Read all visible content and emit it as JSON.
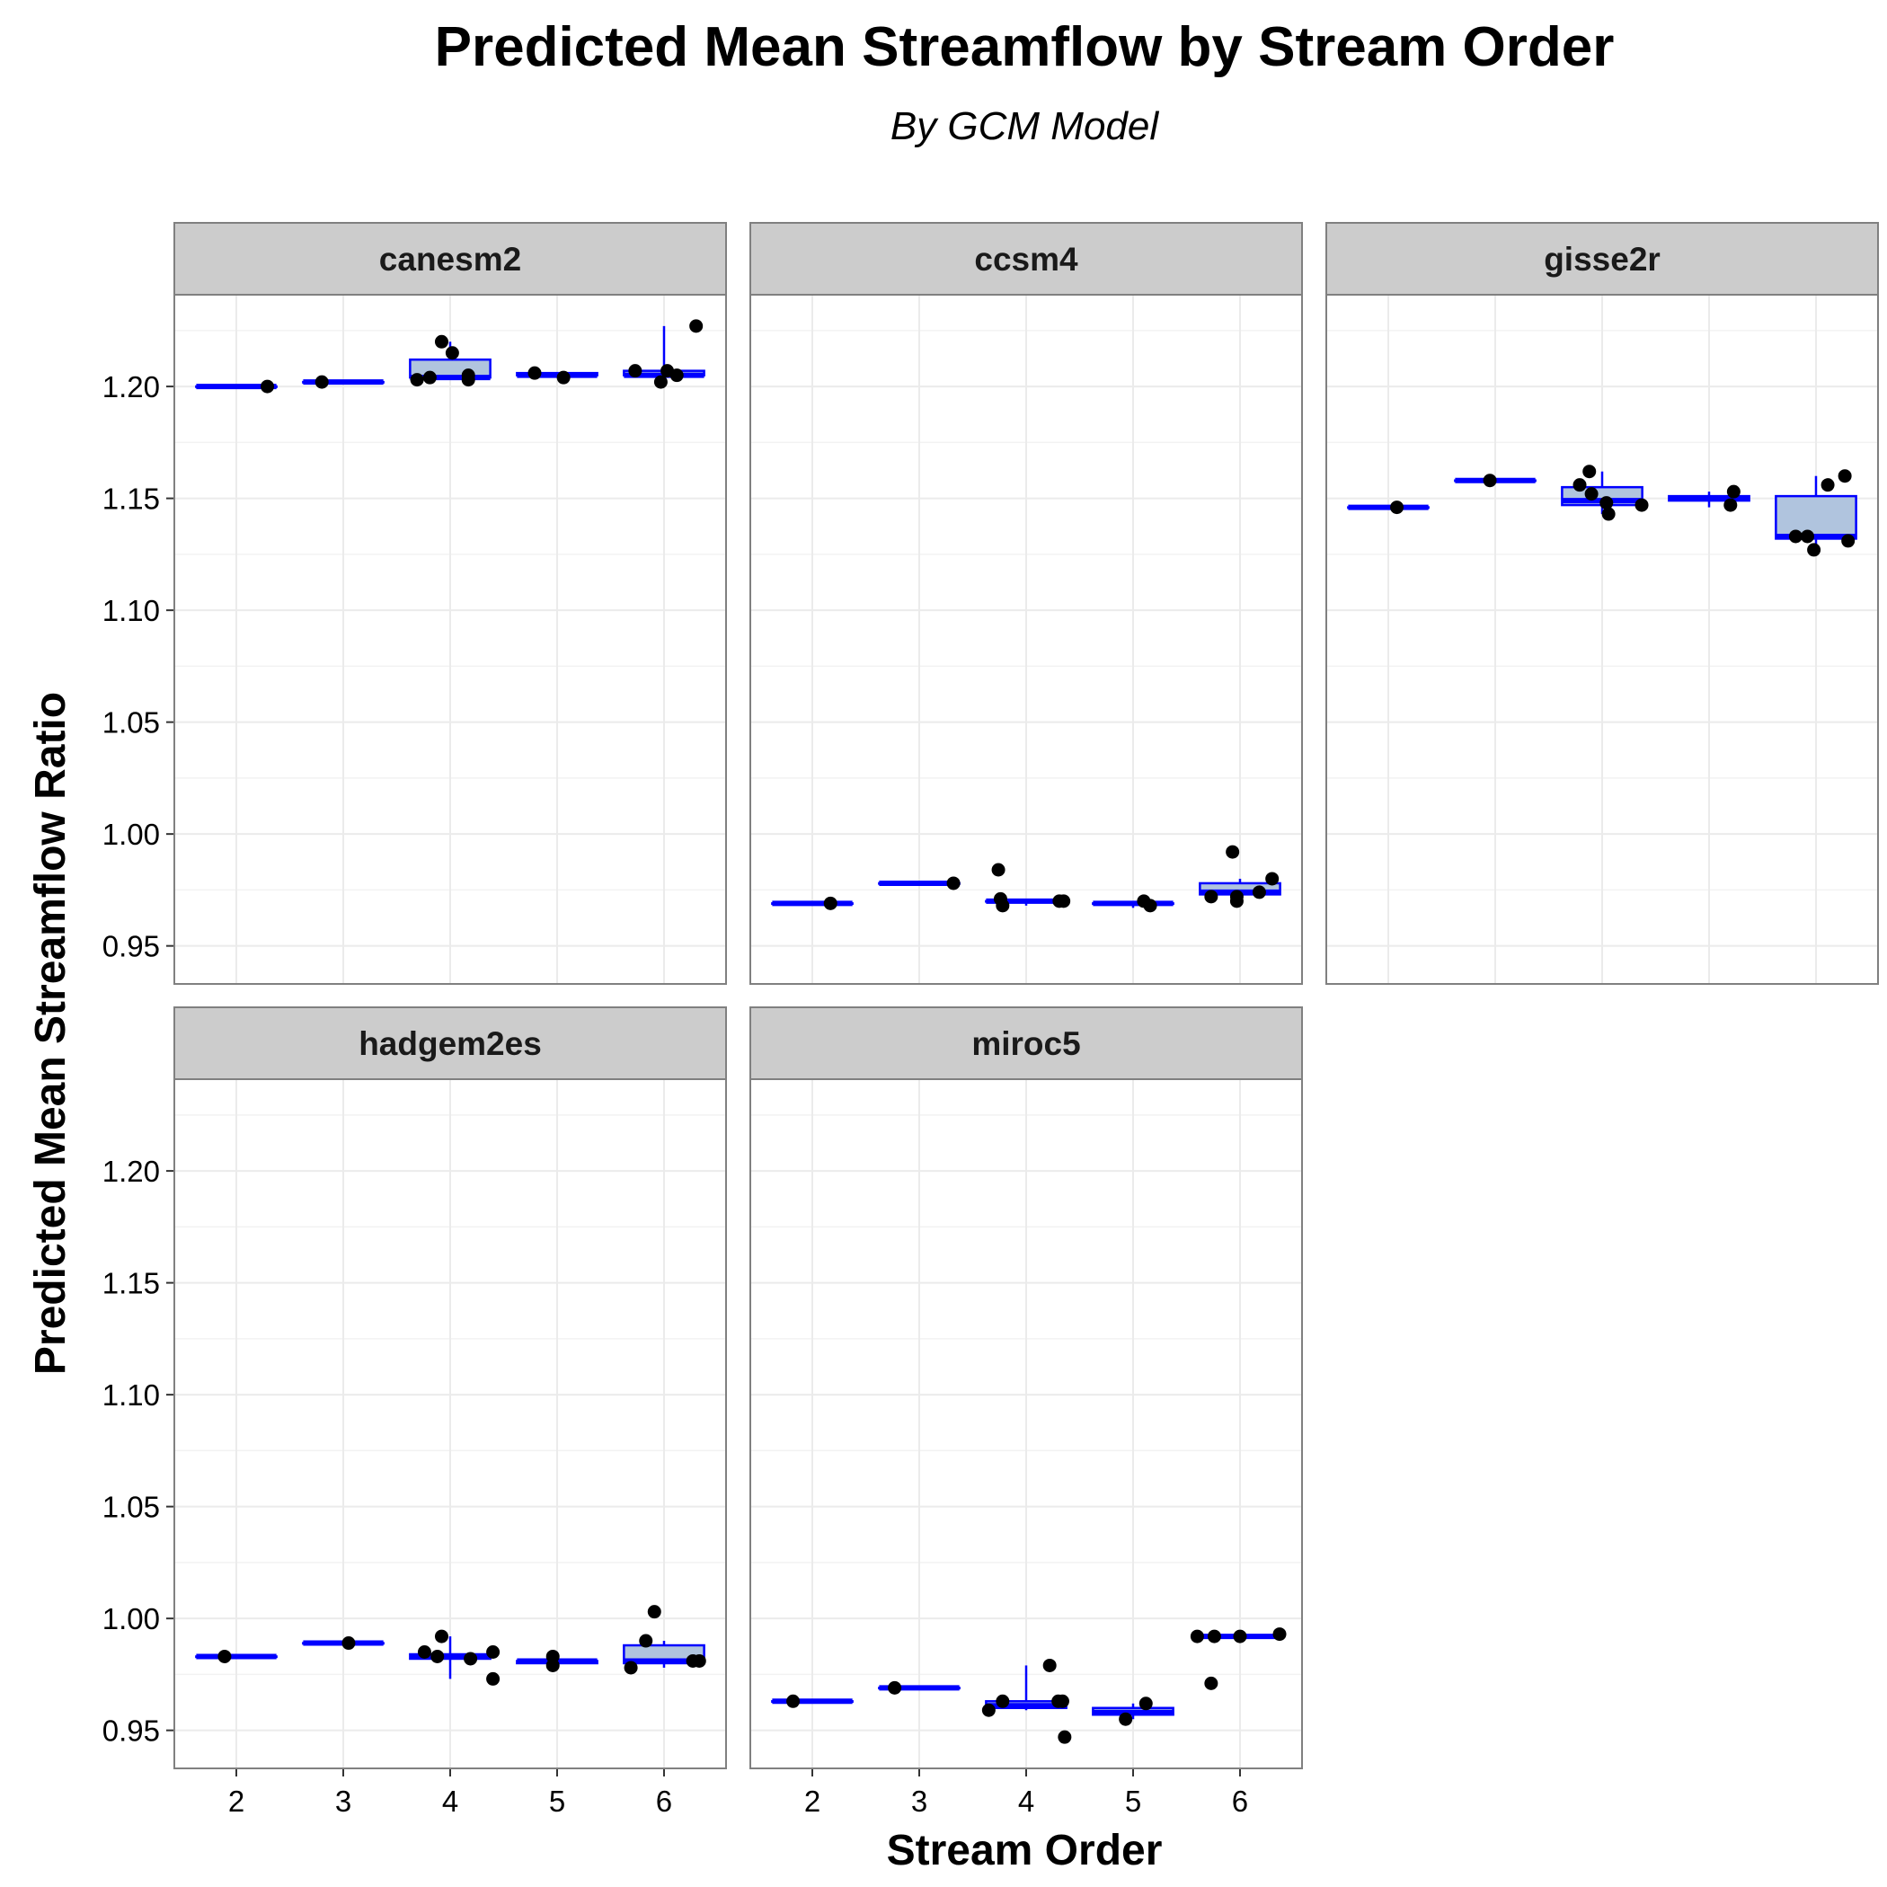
{
  "chart_data": {
    "type": "boxplot",
    "title": "Predicted Mean Streamflow by Stream Order",
    "subtitle": "By GCM Model",
    "xlabel": "Stream Order",
    "ylabel": "Predicted Mean Streamflow Ratio",
    "categories": [
      2,
      3,
      4,
      5,
      6
    ],
    "x_ticks": [
      "2",
      "3",
      "4",
      "5",
      "6"
    ],
    "y_ticks": [
      "0.95",
      "1.00",
      "1.05",
      "1.10",
      "1.15",
      "1.20"
    ],
    "ylim": [
      0.933,
      1.241
    ],
    "grid": true,
    "colors": {
      "box_line": "#0000ff",
      "box_fill": "#b0c4de",
      "points": "#000000",
      "strip_fill": "#cccccc",
      "panel_border": "#808080",
      "grid": "#ebebeb"
    },
    "panels": [
      {
        "name": "canesm2",
        "boxes": [
          {
            "x": 2,
            "q1": 1.2,
            "median": 1.2,
            "q3": 1.2,
            "whisker_low": 1.2,
            "whisker_high": 1.2
          },
          {
            "x": 3,
            "q1": 1.202,
            "median": 1.202,
            "q3": 1.202,
            "whisker_low": 1.202,
            "whisker_high": 1.202
          },
          {
            "x": 4,
            "q1": 1.204,
            "median": 1.204,
            "q3": 1.212,
            "whisker_low": 1.203,
            "whisker_high": 1.22
          },
          {
            "x": 5,
            "q1": 1.205,
            "median": 1.205,
            "q3": 1.206,
            "whisker_low": 1.204,
            "whisker_high": 1.206
          },
          {
            "x": 6,
            "q1": 1.205,
            "median": 1.205,
            "q3": 1.207,
            "whisker_low": 1.202,
            "whisker_high": 1.227
          }
        ],
        "points": [
          [
            2.29,
            1.2
          ],
          [
            2.8,
            1.202
          ],
          [
            3.69,
            1.203
          ],
          [
            3.81,
            1.204
          ],
          [
            3.92,
            1.22
          ],
          [
            4.02,
            1.215
          ],
          [
            4.17,
            1.205
          ],
          [
            4.17,
            1.203
          ],
          [
            4.79,
            1.206
          ],
          [
            5.06,
            1.204
          ],
          [
            5.73,
            1.207
          ],
          [
            5.97,
            1.202
          ],
          [
            6.03,
            1.207
          ],
          [
            6.12,
            1.205
          ],
          [
            6.3,
            1.227
          ]
        ]
      },
      {
        "name": "ccsm4",
        "boxes": [
          {
            "x": 2,
            "q1": 0.969,
            "median": 0.969,
            "q3": 0.969,
            "whisker_low": 0.969,
            "whisker_high": 0.969
          },
          {
            "x": 3,
            "q1": 0.978,
            "median": 0.978,
            "q3": 0.978,
            "whisker_low": 0.978,
            "whisker_high": 0.978
          },
          {
            "x": 4,
            "q1": 0.97,
            "median": 0.97,
            "q3": 0.97,
            "whisker_low": 0.968,
            "whisker_high": 0.97
          },
          {
            "x": 5,
            "q1": 0.969,
            "median": 0.969,
            "q3": 0.969,
            "whisker_low": 0.967,
            "whisker_high": 0.97
          },
          {
            "x": 6,
            "q1": 0.973,
            "median": 0.974,
            "q3": 0.978,
            "whisker_low": 0.97,
            "whisker_high": 0.98
          }
        ],
        "points": [
          [
            2.17,
            0.969
          ],
          [
            3.32,
            0.978
          ],
          [
            3.74,
            0.984
          ],
          [
            3.76,
            0.971
          ],
          [
            3.78,
            0.968
          ],
          [
            4.31,
            0.97
          ],
          [
            4.35,
            0.97
          ],
          [
            5.1,
            0.97
          ],
          [
            5.16,
            0.968
          ],
          [
            5.73,
            0.972
          ],
          [
            5.93,
            0.992
          ],
          [
            5.97,
            0.972
          ],
          [
            5.97,
            0.97
          ],
          [
            6.18,
            0.974
          ],
          [
            6.3,
            0.98
          ]
        ]
      },
      {
        "name": "gisse2r",
        "boxes": [
          {
            "x": 2,
            "q1": 1.146,
            "median": 1.146,
            "q3": 1.146,
            "whisker_low": 1.146,
            "whisker_high": 1.146
          },
          {
            "x": 3,
            "q1": 1.158,
            "median": 1.158,
            "q3": 1.158,
            "whisker_low": 1.158,
            "whisker_high": 1.158
          },
          {
            "x": 4,
            "q1": 1.147,
            "median": 1.149,
            "q3": 1.155,
            "whisker_low": 1.143,
            "whisker_high": 1.162
          },
          {
            "x": 5,
            "q1": 1.149,
            "median": 1.15,
            "q3": 1.151,
            "whisker_low": 1.146,
            "whisker_high": 1.153
          },
          {
            "x": 6,
            "q1": 1.132,
            "median": 1.133,
            "q3": 1.151,
            "whisker_low": 1.127,
            "whisker_high": 1.16
          }
        ],
        "points": [
          [
            2.08,
            1.146
          ],
          [
            2.95,
            1.158
          ],
          [
            3.79,
            1.156
          ],
          [
            3.88,
            1.162
          ],
          [
            3.9,
            1.152
          ],
          [
            4.04,
            1.148
          ],
          [
            4.06,
            1.143
          ],
          [
            4.37,
            1.147
          ],
          [
            5.2,
            1.147
          ],
          [
            5.23,
            1.153
          ],
          [
            5.81,
            1.133
          ],
          [
            5.92,
            1.133
          ],
          [
            5.98,
            1.127
          ],
          [
            6.11,
            1.156
          ],
          [
            6.27,
            1.16
          ],
          [
            6.3,
            1.131
          ]
        ]
      },
      {
        "name": "hadgem2es",
        "boxes": [
          {
            "x": 2,
            "q1": 0.983,
            "median": 0.983,
            "q3": 0.983,
            "whisker_low": 0.983,
            "whisker_high": 0.983
          },
          {
            "x": 3,
            "q1": 0.989,
            "median": 0.989,
            "q3": 0.989,
            "whisker_low": 0.989,
            "whisker_high": 0.989
          },
          {
            "x": 4,
            "q1": 0.982,
            "median": 0.983,
            "q3": 0.984,
            "whisker_low": 0.973,
            "whisker_high": 0.992
          },
          {
            "x": 5,
            "q1": 0.98,
            "median": 0.981,
            "q3": 0.981,
            "whisker_low": 0.979,
            "whisker_high": 0.982
          },
          {
            "x": 6,
            "q1": 0.98,
            "median": 0.981,
            "q3": 0.988,
            "whisker_low": 0.978,
            "whisker_high": 0.99
          }
        ],
        "points": [
          [
            1.89,
            0.983
          ],
          [
            3.05,
            0.989
          ],
          [
            3.76,
            0.985
          ],
          [
            3.88,
            0.983
          ],
          [
            3.92,
            0.992
          ],
          [
            4.19,
            0.982
          ],
          [
            4.4,
            0.985
          ],
          [
            4.4,
            0.973
          ],
          [
            4.96,
            0.983
          ],
          [
            4.96,
            0.979
          ],
          [
            5.69,
            0.978
          ],
          [
            5.83,
            0.99
          ],
          [
            5.91,
            1.003
          ],
          [
            6.27,
            0.981
          ],
          [
            6.33,
            0.981
          ]
        ]
      },
      {
        "name": "miroc5",
        "boxes": [
          {
            "x": 2,
            "q1": 0.963,
            "median": 0.963,
            "q3": 0.963,
            "whisker_low": 0.963,
            "whisker_high": 0.963
          },
          {
            "x": 3,
            "q1": 0.969,
            "median": 0.969,
            "q3": 0.969,
            "whisker_low": 0.969,
            "whisker_high": 0.969
          },
          {
            "x": 4,
            "q1": 0.96,
            "median": 0.961,
            "q3": 0.963,
            "whisker_low": 0.959,
            "whisker_high": 0.979
          },
          {
            "x": 5,
            "q1": 0.957,
            "median": 0.958,
            "q3": 0.96,
            "whisker_low": 0.955,
            "whisker_high": 0.962
          },
          {
            "x": 6,
            "q1": 0.992,
            "median": 0.992,
            "q3": 0.992,
            "whisker_low": 0.992,
            "whisker_high": 0.993
          }
        ],
        "points": [
          [
            1.82,
            0.963
          ],
          [
            2.77,
            0.969
          ],
          [
            3.65,
            0.959
          ],
          [
            3.78,
            0.963
          ],
          [
            4.22,
            0.979
          ],
          [
            4.3,
            0.963
          ],
          [
            4.34,
            0.963
          ],
          [
            4.36,
            0.947
          ],
          [
            4.93,
            0.955
          ],
          [
            5.12,
            0.962
          ],
          [
            5.6,
            0.992
          ],
          [
            5.73,
            0.971
          ],
          [
            5.76,
            0.992
          ],
          [
            6.0,
            0.992
          ],
          [
            6.37,
            0.993
          ]
        ]
      }
    ]
  }
}
